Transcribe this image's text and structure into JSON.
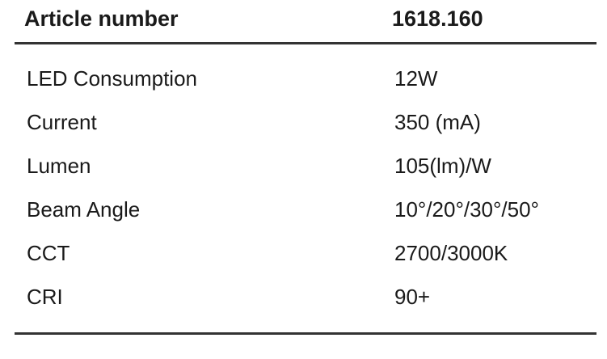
{
  "table": {
    "header": [
      "Article number",
      "1618.160"
    ],
    "rows": [
      [
        "LED Consumption",
        "12W"
      ],
      [
        "Current",
        "350 (mA)"
      ],
      [
        "Lumen",
        "105(lm)/W"
      ],
      [
        "Beam Angle",
        "10°/20°/30°/50°"
      ],
      [
        "CCT",
        "2700/3000K"
      ],
      [
        "CRI",
        "90+"
      ]
    ]
  }
}
